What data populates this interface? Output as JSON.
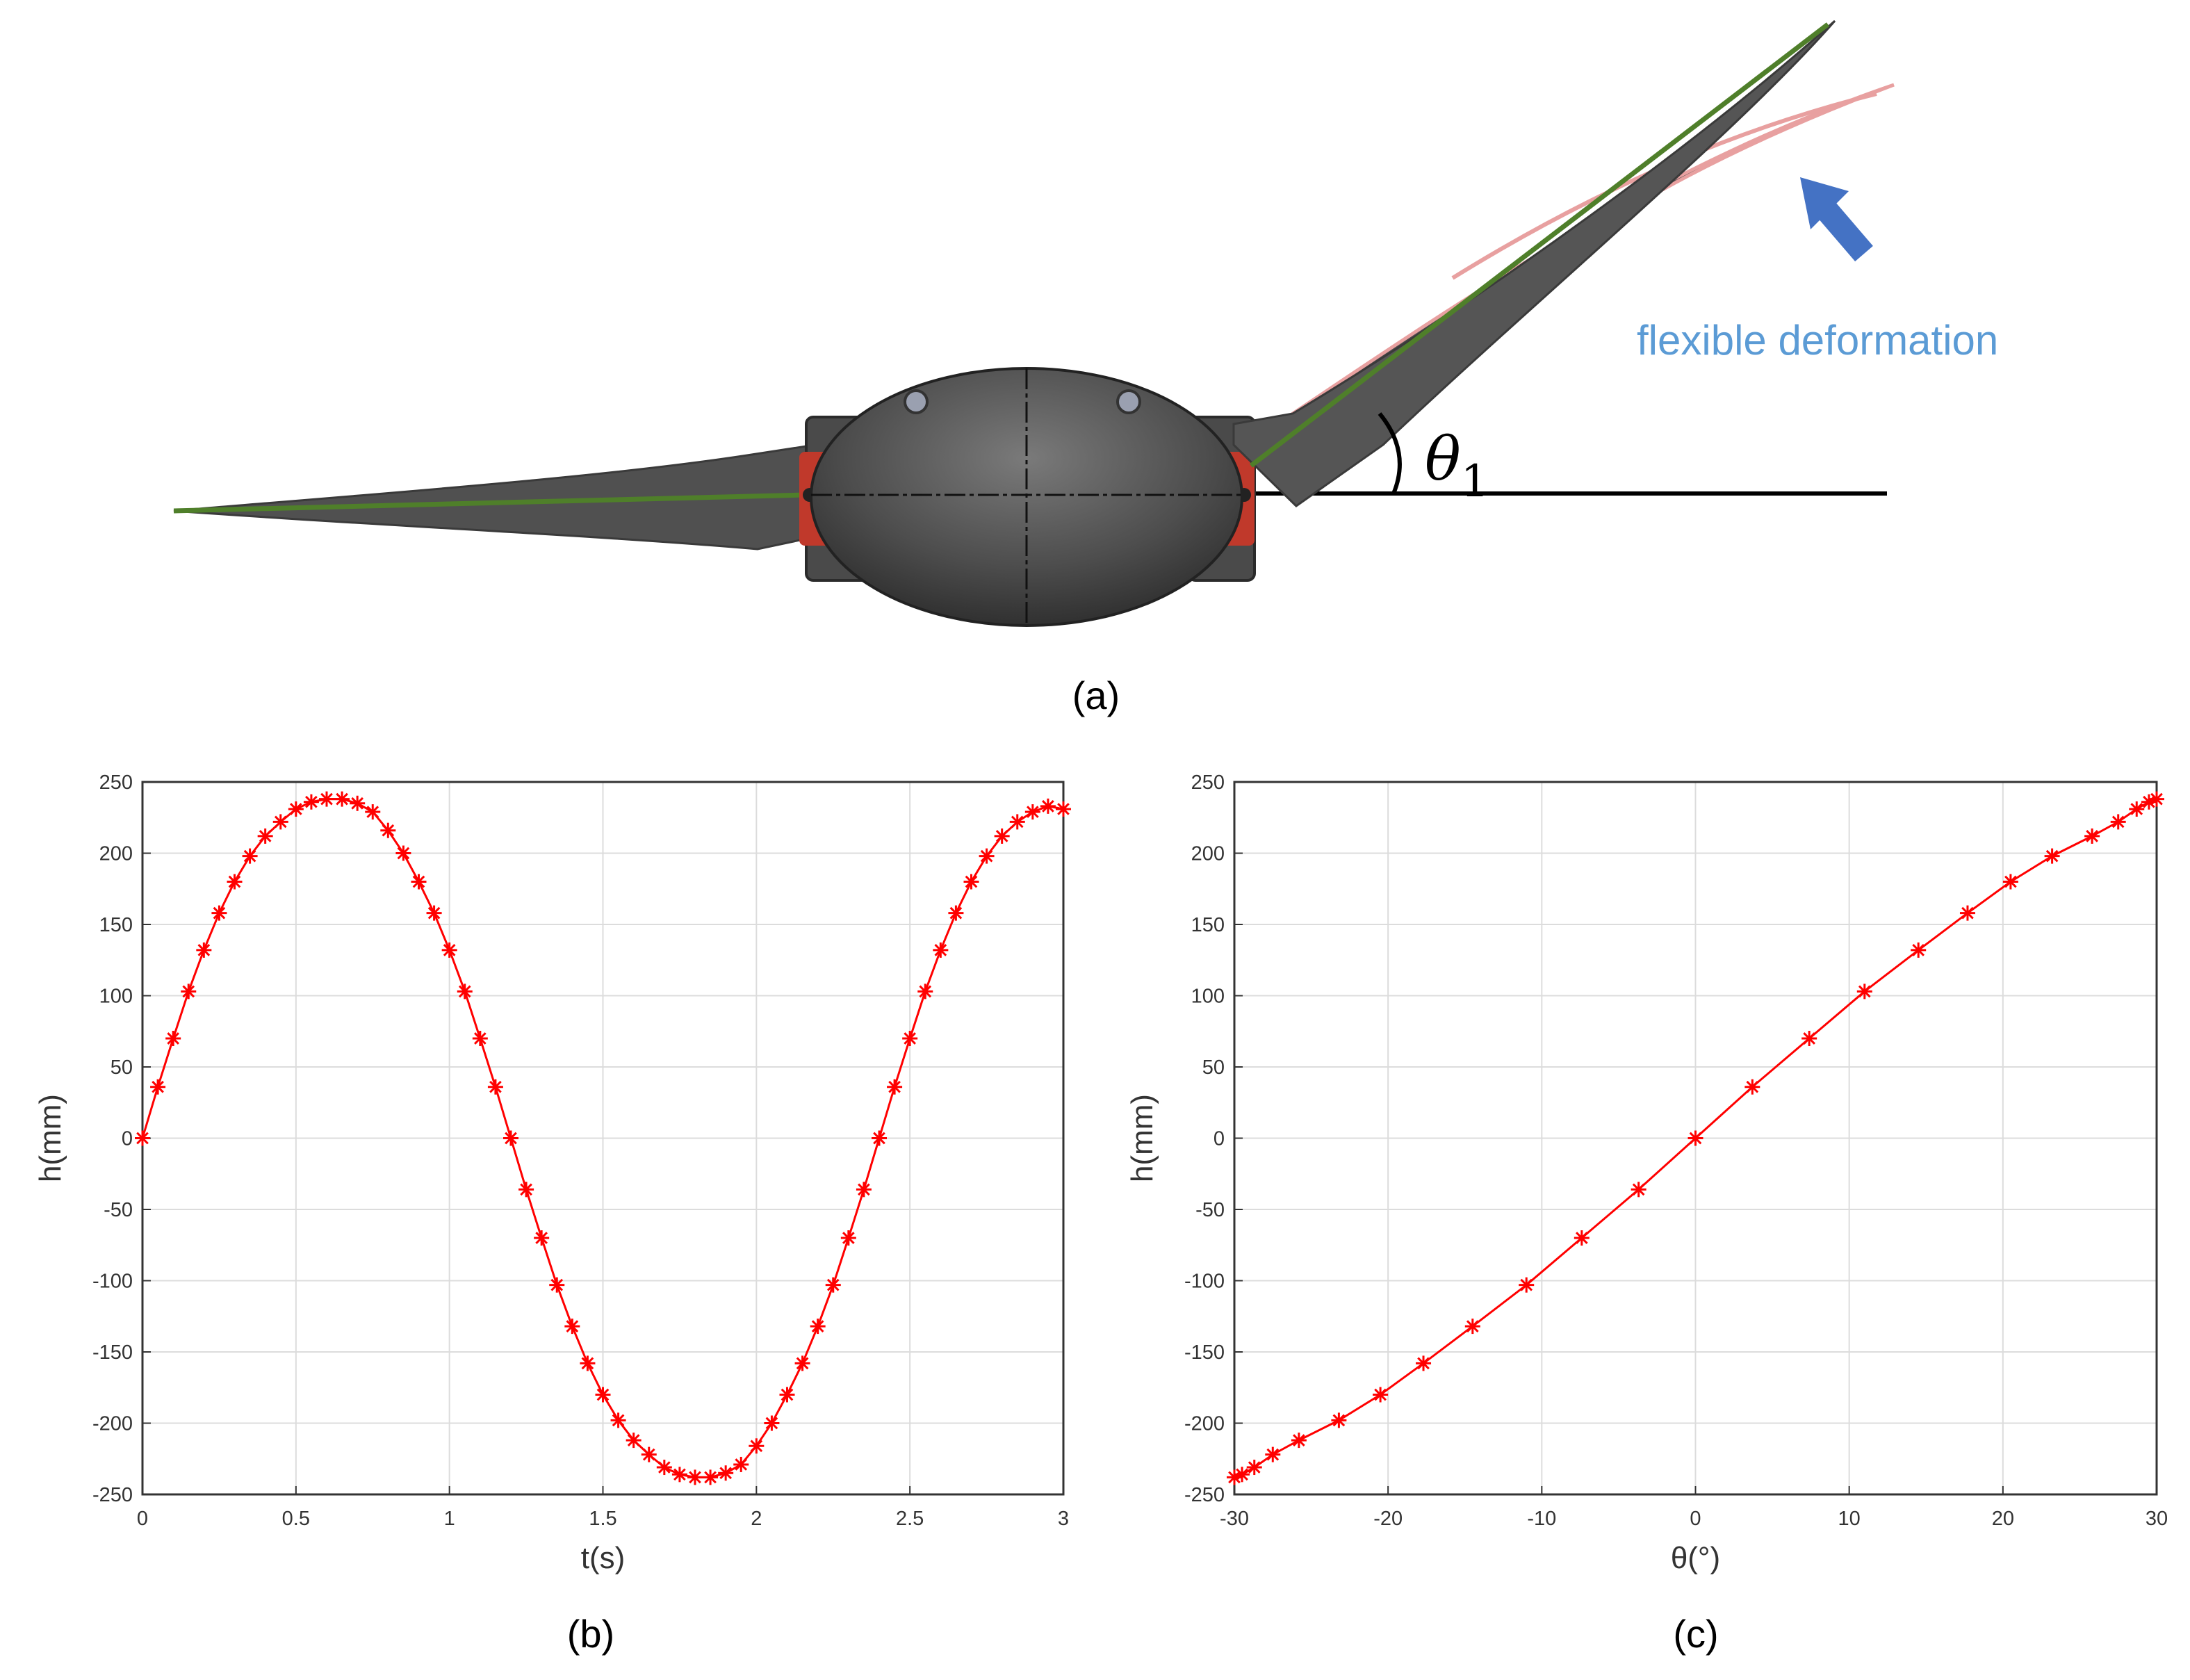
{
  "figure": {
    "panel_a_label": "(a)",
    "panel_b_label": "(b)",
    "panel_c_label": "(c)",
    "annotation": "flexible deformation",
    "annotation_color": "#5B9BD5",
    "angle_symbol": "θ",
    "angle_subscript": "1",
    "wing_color": "#555555",
    "spar_color": "#4F7F2A",
    "hinge_color": "#C0392B",
    "deformed_edge_color": "#E8A0A0",
    "arrow_color": "#4472C4"
  },
  "chart_data": [
    {
      "type": "line",
      "title": "",
      "xlabel": "t(s)",
      "ylabel": "h(mm)",
      "xlim": [
        0,
        3
      ],
      "ylim": [
        -250,
        250
      ],
      "xticks": [
        0,
        0.5,
        1,
        1.5,
        2,
        2.5,
        3
      ],
      "xtick_labels": [
        "0",
        "0.5",
        "1",
        "1.5",
        "2",
        "2.5",
        "3"
      ],
      "yticks": [
        -250,
        -200,
        -150,
        -100,
        -50,
        0,
        50,
        100,
        150,
        200,
        250
      ],
      "ytick_labels": [
        "-250",
        "-200",
        "-150",
        "-100",
        "-50",
        "0",
        "50",
        "100",
        "150",
        "200",
        "250"
      ],
      "grid": true,
      "marker": "asterisk",
      "color": "#FF0000",
      "series": [
        {
          "x": [
            0,
            0.05,
            0.1,
            0.15,
            0.2,
            0.25,
            0.3,
            0.35,
            0.4,
            0.45,
            0.5,
            0.55,
            0.6,
            0.65,
            0.7,
            0.75,
            0.8,
            0.85,
            0.9,
            0.95,
            1,
            1.05,
            1.1,
            1.15,
            1.2,
            1.25,
            1.3,
            1.35,
            1.4,
            1.45,
            1.5,
            1.55,
            1.6,
            1.65,
            1.7,
            1.75,
            1.8,
            1.85,
            1.9,
            1.95,
            2,
            2.05,
            2.1,
            2.15,
            2.2,
            2.25,
            2.3,
            2.35,
            2.4,
            2.45,
            2.5,
            2.55,
            2.6,
            2.65,
            2.7,
            2.75,
            2.8,
            2.85,
            2.9,
            2.95,
            3
          ],
          "values": [
            0,
            36,
            70,
            103,
            132,
            158,
            180,
            198,
            212,
            222,
            231,
            236,
            238,
            238,
            235,
            229,
            216,
            200,
            180,
            158,
            132,
            103,
            70,
            36,
            0,
            -36,
            -70,
            -103,
            -132,
            -158,
            -180,
            -198,
            -212,
            -222,
            -231,
            -236,
            -238,
            -238,
            -235,
            -229,
            -216,
            -200,
            -180,
            -158,
            -132,
            -103,
            -70,
            -36,
            0,
            36,
            70,
            103,
            132,
            158,
            180,
            198,
            212,
            222,
            229,
            233,
            231
          ]
        }
      ]
    },
    {
      "type": "line",
      "title": "",
      "xlabel": "θ(°)",
      "ylabel": "h(mm)",
      "xlim": [
        -30,
        30
      ],
      "ylim": [
        -250,
        250
      ],
      "xticks": [
        -30,
        -20,
        -10,
        0,
        10,
        20,
        30
      ],
      "xtick_labels": [
        "-30",
        "-20",
        "-10",
        "0",
        "10",
        "20",
        "30"
      ],
      "yticks": [
        -250,
        -200,
        -150,
        -100,
        -50,
        0,
        50,
        100,
        150,
        200,
        250
      ],
      "ytick_labels": [
        "-250",
        "-200",
        "-150",
        "-100",
        "-50",
        "0",
        "50",
        "100",
        "150",
        "200",
        "250"
      ],
      "grid": true,
      "marker": "asterisk",
      "color": "#FF0000",
      "series": [
        {
          "x": [
            -30,
            -29.5,
            -28.7,
            -27.5,
            -25.8,
            -23.2,
            -20.5,
            -17.7,
            -14.5,
            -11.0,
            -7.4,
            -3.7,
            0,
            3.7,
            7.4,
            11.0,
            14.5,
            17.7,
            20.5,
            23.2,
            25.8,
            27.5,
            28.7,
            29.5,
            30
          ],
          "values": [
            -238,
            -236,
            -231,
            -222,
            -212,
            -198,
            -180,
            -158,
            -132,
            -103,
            -70,
            -36,
            0,
            36,
            70,
            103,
            132,
            158,
            180,
            198,
            212,
            222,
            231,
            236,
            238
          ]
        }
      ]
    }
  ]
}
